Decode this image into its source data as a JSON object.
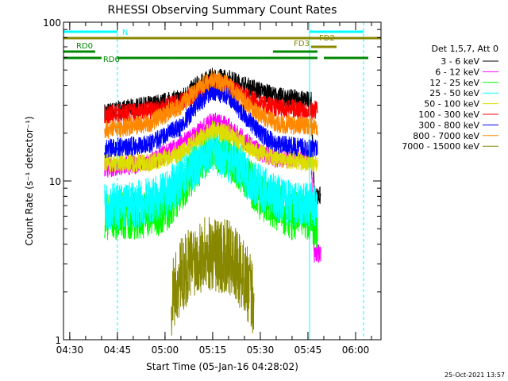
{
  "chart_data": {
    "type": "line",
    "title": "RHESSI Observing Summary Count Rates",
    "xlabel": "Start Time (05-Jan-16 04:28:02)",
    "ylabel": "Count Rate (s⁻¹ detector⁻¹)",
    "x_scale": "time",
    "y_scale": "log",
    "xlim": [
      "04:28:02",
      "06:08:00"
    ],
    "ylim": [
      1,
      100
    ],
    "x_ticks": [
      "04:30",
      "04:45",
      "05:00",
      "05:15",
      "05:30",
      "05:45",
      "06:00"
    ],
    "y_ticks": [
      "1",
      "10",
      "100"
    ],
    "legend_title": "Det 1,5,7, Att 0",
    "legend_position": "right",
    "series": [
      {
        "name": "3 - 6 keV",
        "color": "#000000",
        "t": [
          "04:41",
          "04:55",
          "05:05",
          "05:10",
          "05:15",
          "05:20",
          "05:25",
          "05:30",
          "05:35",
          "05:46",
          "05:47",
          "05:48",
          "05:49"
        ],
        "values": [
          27,
          30,
          33,
          40,
          45,
          44,
          40,
          37,
          34,
          32,
          8,
          8,
          8
        ]
      },
      {
        "name": "6 - 12 keV",
        "color": "#ff00ff",
        "t": [
          "04:41",
          "04:55",
          "05:05",
          "05:10",
          "05:15",
          "05:20",
          "05:25",
          "05:30",
          "05:35",
          "05:46",
          "05:47",
          "05:48",
          "05:49"
        ],
        "values": [
          12,
          13,
          17,
          20,
          24,
          22,
          18,
          15,
          14,
          14,
          3.5,
          3.5,
          3.5
        ]
      },
      {
        "name": "12 - 25 keV",
        "color": "#00ff00",
        "t": [
          "04:41",
          "04:50",
          "05:00",
          "05:08",
          "05:15",
          "05:22",
          "05:30",
          "05:40",
          "05:46",
          "05:48"
        ],
        "values": [
          6,
          6,
          6.5,
          11,
          17,
          13,
          8,
          6,
          6,
          5
        ]
      },
      {
        "name": "25 - 50 keV",
        "color": "#00ffff",
        "t": [
          "04:41",
          "04:50",
          "05:00",
          "05:08",
          "05:15",
          "05:22",
          "05:30",
          "05:40",
          "05:46",
          "05:48"
        ],
        "values": [
          7,
          7,
          8,
          12,
          16,
          13,
          9,
          7,
          7,
          6.5
        ]
      },
      {
        "name": "50 - 100 keV",
        "color": "#dddd00",
        "t": [
          "04:41",
          "04:55",
          "05:05",
          "05:10",
          "05:15",
          "05:20",
          "05:25",
          "05:30",
          "05:35",
          "05:46",
          "05:48"
        ],
        "values": [
          13,
          13,
          15,
          18,
          21,
          20,
          17,
          15,
          14,
          13,
          13
        ]
      },
      {
        "name": "100 - 300 keV",
        "color": "#ff0000",
        "t": [
          "04:41",
          "04:55",
          "05:05",
          "05:10",
          "05:15",
          "05:20",
          "05:25",
          "05:30",
          "05:35",
          "05:46",
          "05:48"
        ],
        "values": [
          26,
          28,
          31,
          36,
          41,
          39,
          34,
          31,
          29,
          28,
          28
        ]
      },
      {
        "name": "300 - 800 keV",
        "color": "#0000ff",
        "t": [
          "04:41",
          "04:55",
          "05:05",
          "05:10",
          "05:15",
          "05:20",
          "05:25",
          "05:30",
          "05:35",
          "05:46",
          "05:48"
        ],
        "values": [
          16,
          17,
          22,
          30,
          37,
          34,
          26,
          20,
          17,
          16,
          16
        ]
      },
      {
        "name": "800 - 7000 keV",
        "color": "#ff8800",
        "t": [
          "04:41",
          "04:55",
          "05:05",
          "05:10",
          "05:15",
          "05:20",
          "05:25",
          "05:30",
          "05:35",
          "05:46",
          "05:48"
        ],
        "values": [
          21,
          23,
          30,
          38,
          44,
          40,
          32,
          26,
          23,
          22,
          22
        ]
      },
      {
        "name": "7000 - 15000 keV",
        "color": "#888800",
        "t": [
          "05:02",
          "05:05",
          "05:10",
          "05:15",
          "05:20",
          "05:25",
          "05:28"
        ],
        "values": [
          1.8,
          2.5,
          3.4,
          3.5,
          3.3,
          2.5,
          1.8
        ]
      }
    ],
    "vertical_lines": [
      {
        "t": "04:28:02",
        "color": "#00ffff",
        "style": "solid"
      },
      {
        "t": "04:45:00",
        "color": "#00ffff",
        "style": "dashed"
      },
      {
        "t": "05:45:30",
        "color": "#00ffff",
        "style": "solid"
      },
      {
        "t": "06:02:30",
        "color": "#00ffff",
        "style": "dashed"
      }
    ],
    "flag_bars": [
      {
        "label": "N",
        "color": "#00ffff",
        "segments": [
          [
            "04:28:02",
            "04:45:00"
          ],
          [
            "05:45:30",
            "06:02:30"
          ]
        ]
      },
      {
        "label": "FD2",
        "color": "#888800",
        "segments": [
          [
            "04:28:02",
            "06:08:00"
          ]
        ]
      },
      {
        "label": "FD3",
        "color": "#888800",
        "segments": [
          [
            "05:46:00",
            "05:54:00"
          ]
        ]
      },
      {
        "label": "RD0",
        "color": "#008800",
        "segments": [
          [
            "04:28:02",
            "04:38:00"
          ],
          [
            "05:34:00",
            "05:48:00"
          ]
        ]
      },
      {
        "label": "RD6",
        "color": "#008800",
        "segments": [
          [
            "04:28:02",
            "04:40:00"
          ],
          [
            "04:45:00",
            "05:02:00"
          ],
          [
            "05:31:00",
            "05:48:00"
          ]
        ]
      },
      {
        "label": "",
        "color": "#008800",
        "segments": [
          [
            "05:02:00",
            "05:31:00"
          ],
          [
            "05:50:00",
            "06:04:00"
          ]
        ]
      }
    ],
    "timestamp": "25-Oct-2021 13:57",
    "grid": false
  }
}
